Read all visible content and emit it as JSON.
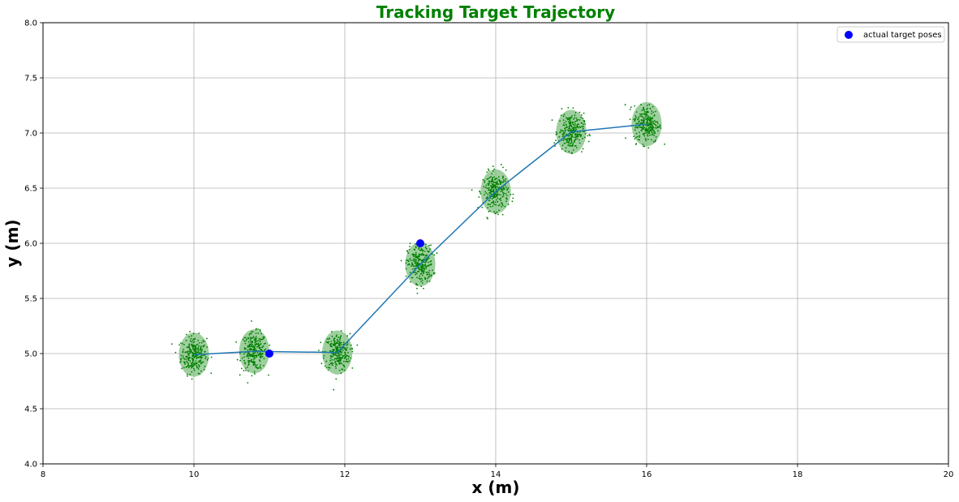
{
  "chart_data": {
    "type": "scatter",
    "title": "Tracking Target Trajectory",
    "title_color": "#008000",
    "xlabel": "x (m)",
    "ylabel": "y (m)",
    "xlim": [
      8,
      20
    ],
    "ylim": [
      4.0,
      8.0
    ],
    "xticks": [
      "8",
      "10",
      "12",
      "14",
      "16",
      "18",
      "20"
    ],
    "yticks": [
      "4.0",
      "4.5",
      "5.0",
      "5.5",
      "6.0",
      "6.5",
      "7.0",
      "7.5",
      "8.0"
    ],
    "grid": true,
    "legend": {
      "placement": "top-right",
      "entries": [
        {
          "label": "actual target poses",
          "marker": "circle",
          "color": "#0000ff"
        }
      ]
    },
    "estimated_trajectory": {
      "color": "#1f77b4",
      "x": [
        10.0,
        10.8,
        11.9,
        13.0,
        14.0,
        15.0,
        16.0
      ],
      "y": [
        4.99,
        5.02,
        5.01,
        5.81,
        6.47,
        7.01,
        7.08
      ]
    },
    "actual_target_poses": {
      "color": "#0000ff",
      "x": [
        11.0,
        13.0
      ],
      "y": [
        5.0,
        6.0
      ]
    },
    "particle_clouds": {
      "color": "#008000",
      "ellipse_color": "#7fbf7f",
      "centers_x": [
        10.0,
        10.8,
        11.9,
        13.0,
        14.0,
        15.0,
        16.0
      ],
      "centers_y": [
        4.99,
        5.02,
        5.01,
        5.81,
        6.47,
        7.01,
        7.08
      ],
      "spread_x": [
        0.2,
        0.2,
        0.2,
        0.2,
        0.2,
        0.2,
        0.2
      ],
      "spread_y": [
        0.2,
        0.2,
        0.2,
        0.2,
        0.2,
        0.2,
        0.2
      ]
    }
  }
}
